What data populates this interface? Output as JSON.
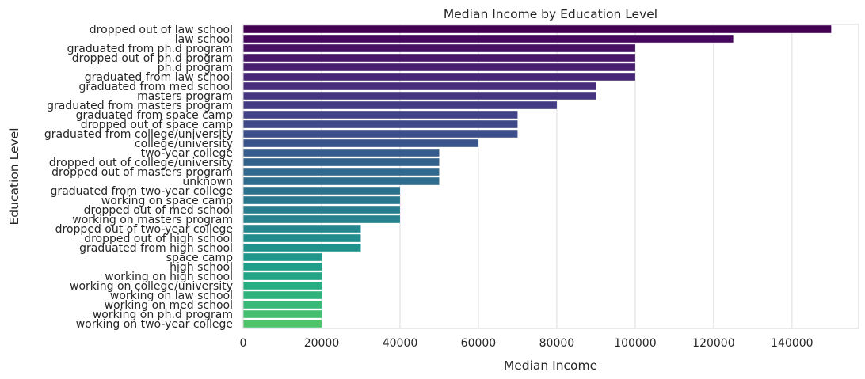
{
  "chart_data": {
    "type": "bar",
    "orientation": "horizontal",
    "title": "Median Income by Education Level",
    "xlabel": "Median Income",
    "ylabel": "Education Level",
    "xlim": [
      0,
      157000
    ],
    "x_ticks": [
      0,
      20000,
      40000,
      60000,
      80000,
      100000,
      120000,
      140000
    ],
    "grid": "vertical",
    "colormap": "viridis",
    "categories": [
      "dropped out of law school",
      "law school",
      "graduated from ph.d program",
      "dropped out of ph.d program",
      "ph.d program",
      "graduated from law school",
      "graduated from med school",
      "masters program",
      "graduated from masters program",
      "graduated from space camp",
      "dropped out of space camp",
      "graduated from college/university",
      "college/university",
      "two-year college",
      "dropped out of college/university",
      "dropped out of masters program",
      "unknown",
      "graduated from two-year college",
      "working on space camp",
      "dropped out of med school",
      "working on masters program",
      "dropped out of two-year college",
      "dropped out of high school",
      "graduated from high school",
      "space camp",
      "high school",
      "working on high school",
      "working on college/university",
      "working on law school",
      "working on med school",
      "working on ph.d program",
      "working on two-year college"
    ],
    "values": [
      150000,
      125000,
      100000,
      100000,
      100000,
      100000,
      90000,
      90000,
      80000,
      70000,
      70000,
      70000,
      60000,
      50000,
      50000,
      50000,
      50000,
      40000,
      40000,
      40000,
      40000,
      30000,
      30000,
      30000,
      20000,
      20000,
      20000,
      20000,
      20000,
      20000,
      20000,
      20000
    ],
    "colors": [
      "#440154",
      "#46085c",
      "#471063",
      "#48176a",
      "#481f70",
      "#472677",
      "#472d7b",
      "#453581",
      "#433c84",
      "#414287",
      "#3f4889",
      "#3c4f8a",
      "#39558c",
      "#365c8d",
      "#33628d",
      "#31688e",
      "#2e6d8e",
      "#2c728e",
      "#2a788e",
      "#287d8e",
      "#26828e",
      "#24878e",
      "#228d8d",
      "#1f928c",
      "#1f978b",
      "#1f9e89",
      "#21a585",
      "#26ad81",
      "#2eb37c",
      "#38b977",
      "#44bf70",
      "#50c46a"
    ]
  }
}
